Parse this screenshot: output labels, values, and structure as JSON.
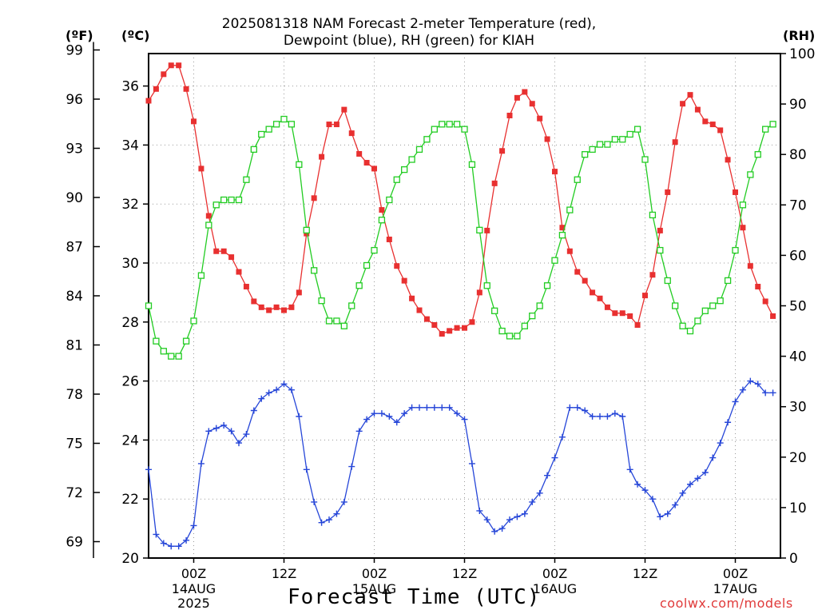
{
  "title_line1": "2025081318 NAM Forecast 2-meter Temperature (red),",
  "title_line2": "Dewpoint (blue), RH (green) for KIAH",
  "unit_f": "(ºF)",
  "unit_c": "(ºC)",
  "unit_rh": "(RH)",
  "xlabel": "Forecast Time (UTC)",
  "credit": "coolwx.com/models",
  "colors": {
    "temp": "#e83030",
    "dewpoint": "#2646d8",
    "rh": "#22cc22",
    "grid": "#999999"
  },
  "chart_data": {
    "type": "line",
    "title": "2025081318 NAM Forecast 2-meter Temperature (red), Dewpoint (blue), RH (green) for KIAH",
    "xlabel": "Forecast Time (UTC)",
    "x_unit": "forecast hour from 2025-08-13 18Z",
    "x_range": [
      0,
      84
    ],
    "x_ticks": [
      {
        "x": 6,
        "label": "00Z",
        "sub": [
          "14AUG",
          "2025"
        ]
      },
      {
        "x": 18,
        "label": "12Z",
        "sub": []
      },
      {
        "x": 30,
        "label": "00Z",
        "sub": [
          "15AUG"
        ]
      },
      {
        "x": 42,
        "label": "12Z",
        "sub": []
      },
      {
        "x": 54,
        "label": "00Z",
        "sub": [
          "16AUG"
        ]
      },
      {
        "x": 66,
        "label": "12Z",
        "sub": []
      },
      {
        "x": 78,
        "label": "00Z",
        "sub": [
          "17AUG"
        ]
      }
    ],
    "y_left_c": {
      "range": [
        20,
        37.1
      ],
      "ticks": [
        20,
        22,
        24,
        26,
        28,
        30,
        32,
        34,
        36
      ]
    },
    "y_left_f": {
      "ticks": [
        69,
        72,
        75,
        78,
        81,
        84,
        87,
        90,
        93,
        96,
        99
      ]
    },
    "y_right_rh": {
      "range": [
        0,
        100
      ],
      "ticks": [
        0,
        10,
        20,
        30,
        40,
        50,
        60,
        70,
        80,
        90,
        100
      ]
    },
    "grid": true,
    "series": [
      {
        "name": "Temperature",
        "axis": "C",
        "marker": "filled-square",
        "values": [
          35.5,
          35.9,
          36.4,
          36.7,
          36.7,
          35.9,
          34.8,
          33.2,
          31.6,
          30.4,
          30.4,
          30.2,
          29.7,
          29.2,
          28.7,
          28.5,
          28.4,
          28.5,
          28.4,
          28.5,
          29.0,
          31.0,
          32.2,
          33.6,
          34.7,
          34.7,
          35.2,
          34.4,
          33.7,
          33.4,
          33.2,
          31.8,
          30.8,
          29.9,
          29.4,
          28.8,
          28.4,
          28.1,
          27.9,
          27.6,
          27.7,
          27.8,
          27.8,
          28.0,
          29.0,
          31.1,
          32.7,
          33.8,
          35.0,
          35.6,
          35.8,
          35.4,
          34.9,
          34.2,
          33.1,
          31.2,
          30.4,
          29.7,
          29.4,
          29.0,
          28.8,
          28.5,
          28.3,
          28.3,
          28.2,
          27.9,
          28.9,
          29.6,
          31.1,
          32.4,
          34.1,
          35.4,
          35.7,
          35.2,
          34.8,
          34.7,
          34.5,
          33.5,
          32.4,
          31.2,
          29.9,
          29.2,
          28.7,
          28.2
        ]
      },
      {
        "name": "Dewpoint",
        "axis": "C",
        "marker": "plus",
        "values": [
          23.0,
          20.8,
          20.5,
          20.4,
          20.4,
          20.6,
          21.1,
          23.2,
          24.3,
          24.4,
          24.5,
          24.3,
          23.9,
          24.2,
          25.0,
          25.4,
          25.6,
          25.7,
          25.9,
          25.7,
          24.8,
          23.0,
          21.9,
          21.2,
          21.3,
          21.5,
          21.9,
          23.1,
          24.3,
          24.7,
          24.9,
          24.9,
          24.8,
          24.6,
          24.9,
          25.1,
          25.1,
          25.1,
          25.1,
          25.1,
          25.1,
          24.9,
          24.7,
          23.2,
          21.6,
          21.3,
          20.9,
          21.0,
          21.3,
          21.4,
          21.5,
          21.9,
          22.2,
          22.8,
          23.4,
          24.1,
          25.1,
          25.1,
          25.0,
          24.8,
          24.8,
          24.8,
          24.9,
          24.8,
          23.0,
          22.5,
          22.3,
          22.0,
          21.4,
          21.5,
          21.8,
          22.2,
          22.5,
          22.7,
          22.9,
          23.4,
          23.9,
          24.6,
          25.3,
          25.7,
          26.0,
          25.9,
          25.6,
          25.6
        ]
      },
      {
        "name": "RH",
        "axis": "RH",
        "marker": "open-square",
        "values": [
          50,
          43,
          41,
          40,
          40,
          43,
          47,
          56,
          66,
          70,
          71,
          71,
          71,
          75,
          81,
          84,
          85,
          86,
          87,
          86,
          78,
          65,
          57,
          51,
          47,
          47,
          46,
          50,
          54,
          58,
          61,
          67,
          71,
          75,
          77,
          79,
          81,
          83,
          85,
          86,
          86,
          86,
          85,
          78,
          65,
          54,
          49,
          45,
          44,
          44,
          46,
          48,
          50,
          54,
          59,
          64,
          69,
          75,
          80,
          81,
          82,
          82,
          83,
          83,
          84,
          85,
          79,
          68,
          61,
          55,
          50,
          46,
          45,
          47,
          49,
          50,
          51,
          55,
          61,
          70,
          76,
          80,
          85,
          86
        ]
      }
    ]
  }
}
